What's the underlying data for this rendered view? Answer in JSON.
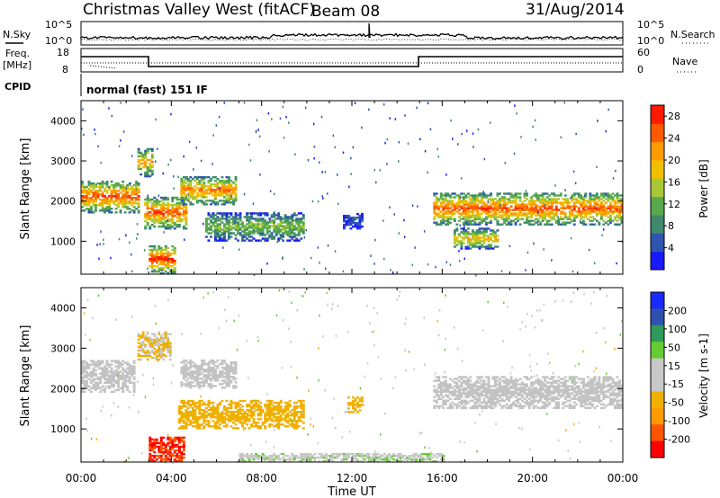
{
  "header": {
    "station": "Christmas Valley West (fitACF)",
    "beam": "Beam 08",
    "date": "31/Aug/2014"
  },
  "aux_panels": {
    "nsky_label": "N.Sky",
    "nsearch_label": "N.Search",
    "nsky_ticks": [
      "10^5",
      "10^0"
    ],
    "nsearch_ticks": [
      "10^5",
      "10^0"
    ],
    "freq_label_1": "Freq.",
    "freq_label_2": "[MHz]",
    "freq_ticks": [
      "18",
      "8"
    ],
    "nave_label": "Nave",
    "nave_ticks": [
      "60",
      "0"
    ],
    "cpid_label": "CPID",
    "cpid_text": "normal (fast) 151 IF"
  },
  "colors": {
    "power": [
      "#1a1aff",
      "#2f55b0",
      "#3f8a6c",
      "#58a84c",
      "#a8c838",
      "#f0c000",
      "#ff9a00",
      "#ff5a00",
      "#ff1a00"
    ],
    "velocity": [
      "#ff0000",
      "#ff5500",
      "#ff9a00",
      "#f0b000",
      "#c8c8c8",
      "#c8c8c8",
      "#66cc33",
      "#2e9a5a",
      "#3050b0",
      "#1a2aff"
    ],
    "ground_scatter": "#c3c3c3"
  },
  "chart_data": [
    {
      "type": "heatmap",
      "name": "power",
      "ylabel": "Slant Range [km]",
      "xlabel": "",
      "x_ticks": [
        "00:00",
        "04:00",
        "08:00",
        "12:00",
        "16:00",
        "20:00",
        "00:00"
      ],
      "xlim_hours": [
        0,
        24
      ],
      "ylim_km": [
        180,
        4500
      ],
      "y_ticks": [
        1000,
        2000,
        3000,
        4000
      ],
      "colorbar_label": "Power [dB]",
      "colorbar_ticks": [
        4,
        8,
        12,
        16,
        20,
        24,
        28
      ],
      "colorbar_range": [
        0,
        30
      ],
      "echo_regions": [
        {
          "t0": 0.0,
          "t1": 2.6,
          "r0": 1700,
          "r1": 2500,
          "peak_db": 26
        },
        {
          "t0": 2.5,
          "t1": 3.2,
          "r0": 2600,
          "r1": 3300,
          "peak_db": 22
        },
        {
          "t0": 2.8,
          "t1": 4.6,
          "r0": 1300,
          "r1": 2100,
          "peak_db": 26
        },
        {
          "t0": 3.0,
          "t1": 4.2,
          "r0": 180,
          "r1": 900,
          "peak_db": 28
        },
        {
          "t0": 4.4,
          "t1": 6.8,
          "r0": 1900,
          "r1": 2600,
          "peak_db": 24
        },
        {
          "t0": 5.5,
          "t1": 9.8,
          "r0": 1000,
          "r1": 1700,
          "peak_db": 14
        },
        {
          "t0": 11.6,
          "t1": 12.4,
          "r0": 1300,
          "r1": 1700,
          "peak_db": 6
        },
        {
          "t0": 15.6,
          "t1": 24.0,
          "r0": 1400,
          "r1": 2200,
          "peak_db": 26
        },
        {
          "t0": 16.5,
          "t1": 18.5,
          "r0": 800,
          "r1": 1300,
          "peak_db": 20
        }
      ]
    },
    {
      "type": "heatmap",
      "name": "velocity",
      "ylabel": "Slant Range [km]",
      "xlabel": "Time UT",
      "x_ticks": [
        "00:00",
        "04:00",
        "08:00",
        "12:00",
        "16:00",
        "20:00",
        "00:00"
      ],
      "xlim_hours": [
        0,
        24
      ],
      "ylim_km": [
        180,
        4500
      ],
      "y_ticks": [
        1000,
        2000,
        3000,
        4000
      ],
      "colorbar_label": "Velocity [m s-1]",
      "colorbar_ticks": [
        200,
        100,
        50,
        15,
        -15,
        -50,
        -100,
        -200
      ],
      "colorbar_range": [
        -250,
        250
      ],
      "echo_regions": [
        {
          "t0": 0.0,
          "t1": 2.4,
          "r0": 1900,
          "r1": 2700,
          "vel": 0,
          "ground": true
        },
        {
          "t0": 2.5,
          "t1": 4.0,
          "r0": 2700,
          "r1": 3400,
          "vel": -50
        },
        {
          "t0": 4.4,
          "t1": 6.8,
          "r0": 2000,
          "r1": 2700,
          "vel": 0,
          "ground": true
        },
        {
          "t0": 3.0,
          "t1": 4.5,
          "r0": 180,
          "r1": 800,
          "vel": -200
        },
        {
          "t0": 4.3,
          "t1": 9.8,
          "r0": 1000,
          "r1": 1700,
          "vel": -80
        },
        {
          "t0": 11.8,
          "t1": 12.4,
          "r0": 1400,
          "r1": 1800,
          "vel": -70
        },
        {
          "t0": 15.6,
          "t1": 24.0,
          "r0": 1500,
          "r1": 2300,
          "vel": 0,
          "ground": true
        },
        {
          "t0": 7.0,
          "t1": 16.0,
          "r0": 180,
          "r1": 400,
          "vel": 40
        }
      ]
    }
  ]
}
